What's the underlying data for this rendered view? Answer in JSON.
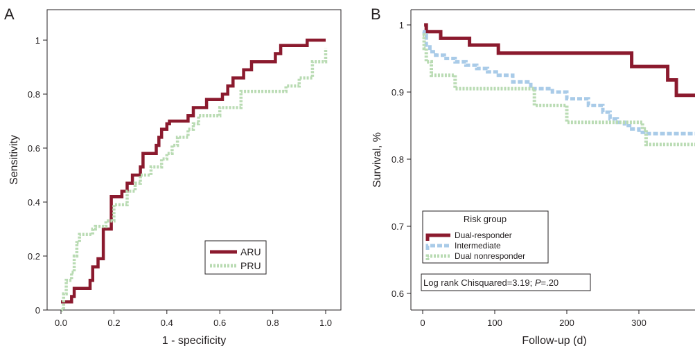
{
  "chart_data": [
    {
      "panel": "A",
      "type": "line",
      "step": true,
      "xlabel": "1 - specificity",
      "ylabel": "Sensitivity",
      "xlim": [
        0,
        1
      ],
      "ylim": [
        0,
        1
      ],
      "xticks": [
        "0.0",
        "0.2",
        "0.4",
        "0.6",
        "0.8",
        "1.0"
      ],
      "yticks": [
        "0",
        "0.2",
        "0.4",
        "0.6",
        "0.8",
        "1"
      ],
      "legend_position": "bottom-right",
      "series": [
        {
          "name": "ARU",
          "color": "#8b1a2e",
          "style": "solid",
          "x": [
            0.0,
            0.03,
            0.04,
            0.05,
            0.1,
            0.11,
            0.12,
            0.14,
            0.15,
            0.16,
            0.18,
            0.19,
            0.22,
            0.23,
            0.25,
            0.27,
            0.28,
            0.3,
            0.31,
            0.32,
            0.36,
            0.37,
            0.38,
            0.39,
            0.4,
            0.41,
            0.46,
            0.48,
            0.5,
            0.53,
            0.55,
            0.6,
            0.61,
            0.63,
            0.65,
            0.67,
            0.69,
            0.72,
            0.73,
            0.8,
            0.81,
            0.83,
            0.91,
            0.93,
            1.0
          ],
          "y": [
            0.03,
            0.03,
            0.05,
            0.08,
            0.08,
            0.11,
            0.16,
            0.19,
            0.19,
            0.3,
            0.3,
            0.42,
            0.42,
            0.44,
            0.47,
            0.5,
            0.5,
            0.53,
            0.58,
            0.58,
            0.61,
            0.64,
            0.67,
            0.67,
            0.69,
            0.7,
            0.7,
            0.72,
            0.75,
            0.75,
            0.78,
            0.78,
            0.8,
            0.83,
            0.86,
            0.86,
            0.89,
            0.92,
            0.92,
            0.92,
            0.95,
            0.98,
            0.98,
            1.0,
            1.0
          ]
        },
        {
          "name": "PRU",
          "color": "#b9dbb3",
          "style": "dotted",
          "x": [
            0.0,
            0.01,
            0.02,
            0.04,
            0.05,
            0.06,
            0.07,
            0.08,
            0.12,
            0.13,
            0.17,
            0.2,
            0.24,
            0.25,
            0.28,
            0.3,
            0.32,
            0.34,
            0.36,
            0.38,
            0.4,
            0.42,
            0.44,
            0.48,
            0.5,
            0.52,
            0.56,
            0.6,
            0.63,
            0.68,
            0.72,
            0.82,
            0.85,
            0.9,
            0.95,
            1.0
          ],
          "y": [
            0.0,
            0.06,
            0.11,
            0.14,
            0.2,
            0.25,
            0.28,
            0.28,
            0.3,
            0.31,
            0.33,
            0.39,
            0.39,
            0.44,
            0.47,
            0.5,
            0.5,
            0.53,
            0.53,
            0.56,
            0.58,
            0.61,
            0.64,
            0.67,
            0.69,
            0.72,
            0.72,
            0.75,
            0.75,
            0.81,
            0.81,
            0.81,
            0.83,
            0.86,
            0.92,
            0.97
          ]
        }
      ]
    },
    {
      "panel": "B",
      "type": "line",
      "step": true,
      "xlabel": "Follow-up (d)",
      "ylabel": "Survival, %",
      "xlim": [
        -15,
        380
      ],
      "ylim": [
        0.6,
        1.0
      ],
      "xticks": [
        "0",
        "100",
        "200",
        "300"
      ],
      "xtick_values": [
        0,
        100,
        200,
        300
      ],
      "yticks": [
        "0.6",
        "0.7",
        "0.8",
        "0.9",
        "1"
      ],
      "ytick_values": [
        0.6,
        0.7,
        0.8,
        0.9,
        1.0
      ],
      "legend_title": "Risk group",
      "legend_position": "bottom-left",
      "annotation": {
        "prefix": "Log rank Chisquared=3.19; ",
        "p_symbol": "P",
        "suffix": "=.20"
      },
      "series": [
        {
          "name": "Dual-responder",
          "color": "#8b1a2e",
          "style": "solid",
          "x": [
            2,
            5,
            25,
            65,
            105,
            290,
            340,
            352,
            380
          ],
          "y": [
            1.0,
            0.99,
            0.98,
            0.97,
            0.958,
            0.938,
            0.918,
            0.895,
            0.895
          ]
        },
        {
          "name": "Intermediate",
          "color": "#a9cbe8",
          "style": "dashed",
          "x": [
            0,
            2,
            5,
            10,
            18,
            30,
            45,
            60,
            75,
            90,
            105,
            125,
            150,
            180,
            200,
            230,
            250,
            260,
            270,
            280,
            290,
            300,
            310,
            330,
            380
          ],
          "y": [
            0.99,
            0.985,
            0.97,
            0.96,
            0.955,
            0.95,
            0.945,
            0.94,
            0.935,
            0.93,
            0.925,
            0.915,
            0.905,
            0.9,
            0.89,
            0.88,
            0.87,
            0.86,
            0.855,
            0.85,
            0.845,
            0.84,
            0.838,
            0.838,
            0.838
          ]
        },
        {
          "name": "Dual nonresponder",
          "color": "#b9dbb3",
          "style": "dotted",
          "x": [
            0,
            2,
            5,
            12,
            45,
            155,
            200,
            305,
            310,
            380
          ],
          "y": [
            0.985,
            0.965,
            0.945,
            0.925,
            0.905,
            0.88,
            0.855,
            0.845,
            0.822,
            0.822
          ]
        }
      ]
    }
  ],
  "panels": {
    "a_label": "A",
    "b_label": "B"
  }
}
